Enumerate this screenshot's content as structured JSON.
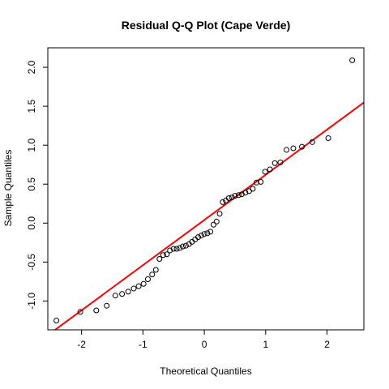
{
  "chart_data": {
    "type": "scatter",
    "title": "Residual Q-Q Plot (Cape Verde)",
    "xlabel": "Theoretical Quantiles",
    "ylabel": "Sample Quantiles",
    "xlim": [
      -2.55,
      2.6
    ],
    "ylim": [
      -1.37,
      2.25
    ],
    "x_ticks": [
      -2,
      -1,
      0,
      1,
      2
    ],
    "x_tick_labels": [
      "-2",
      "-1",
      "0",
      "1",
      "2"
    ],
    "y_ticks": [
      -1.0,
      -0.5,
      0.0,
      0.5,
      1.0,
      1.5,
      2.0
    ],
    "y_tick_labels": [
      "-1.0",
      "-0.5",
      "0.0",
      "0.5",
      "1.0",
      "1.5",
      "2.0"
    ],
    "grid": false,
    "colors": {
      "points": "#000000",
      "reference_line": "#ff0000"
    },
    "reference_line": {
      "slope": 0.58,
      "intercept": 0.04
    },
    "points": [
      {
        "x": -2.41,
        "y": -1.25
      },
      {
        "x": -2.02,
        "y": -1.14
      },
      {
        "x": -1.76,
        "y": -1.12
      },
      {
        "x": -1.59,
        "y": -1.06
      },
      {
        "x": -1.45,
        "y": -0.93
      },
      {
        "x": -1.34,
        "y": -0.91
      },
      {
        "x": -1.24,
        "y": -0.88
      },
      {
        "x": -1.15,
        "y": -0.84
      },
      {
        "x": -1.07,
        "y": -0.81
      },
      {
        "x": -0.99,
        "y": -0.78
      },
      {
        "x": -0.92,
        "y": -0.72
      },
      {
        "x": -0.85,
        "y": -0.66
      },
      {
        "x": -0.79,
        "y": -0.6
      },
      {
        "x": -0.73,
        "y": -0.46
      },
      {
        "x": -0.67,
        "y": -0.41
      },
      {
        "x": -0.61,
        "y": -0.4
      },
      {
        "x": -0.56,
        "y": -0.35
      },
      {
        "x": -0.5,
        "y": -0.33
      },
      {
        "x": -0.45,
        "y": -0.33
      },
      {
        "x": -0.4,
        "y": -0.32
      },
      {
        "x": -0.35,
        "y": -0.3
      },
      {
        "x": -0.3,
        "y": -0.29
      },
      {
        "x": -0.25,
        "y": -0.27
      },
      {
        "x": -0.2,
        "y": -0.24
      },
      {
        "x": -0.15,
        "y": -0.21
      },
      {
        "x": -0.1,
        "y": -0.18
      },
      {
        "x": -0.05,
        "y": -0.16
      },
      {
        "x": 0.0,
        "y": -0.14
      },
      {
        "x": 0.05,
        "y": -0.13
      },
      {
        "x": 0.1,
        "y": -0.11
      },
      {
        "x": 0.15,
        "y": -0.02
      },
      {
        "x": 0.2,
        "y": 0.02
      },
      {
        "x": 0.25,
        "y": 0.12
      },
      {
        "x": 0.3,
        "y": 0.27
      },
      {
        "x": 0.35,
        "y": 0.29
      },
      {
        "x": 0.4,
        "y": 0.32
      },
      {
        "x": 0.45,
        "y": 0.33
      },
      {
        "x": 0.5,
        "y": 0.35
      },
      {
        "x": 0.56,
        "y": 0.36
      },
      {
        "x": 0.61,
        "y": 0.37
      },
      {
        "x": 0.67,
        "y": 0.39
      },
      {
        "x": 0.73,
        "y": 0.41
      },
      {
        "x": 0.79,
        "y": 0.44
      },
      {
        "x": 0.85,
        "y": 0.52
      },
      {
        "x": 0.92,
        "y": 0.53
      },
      {
        "x": 0.99,
        "y": 0.66
      },
      {
        "x": 1.07,
        "y": 0.69
      },
      {
        "x": 1.15,
        "y": 0.77
      },
      {
        "x": 1.24,
        "y": 0.78
      },
      {
        "x": 1.34,
        "y": 0.94
      },
      {
        "x": 1.45,
        "y": 0.96
      },
      {
        "x": 1.59,
        "y": 0.98
      },
      {
        "x": 1.76,
        "y": 1.04
      },
      {
        "x": 2.02,
        "y": 1.09
      },
      {
        "x": 2.41,
        "y": 2.09
      }
    ]
  }
}
